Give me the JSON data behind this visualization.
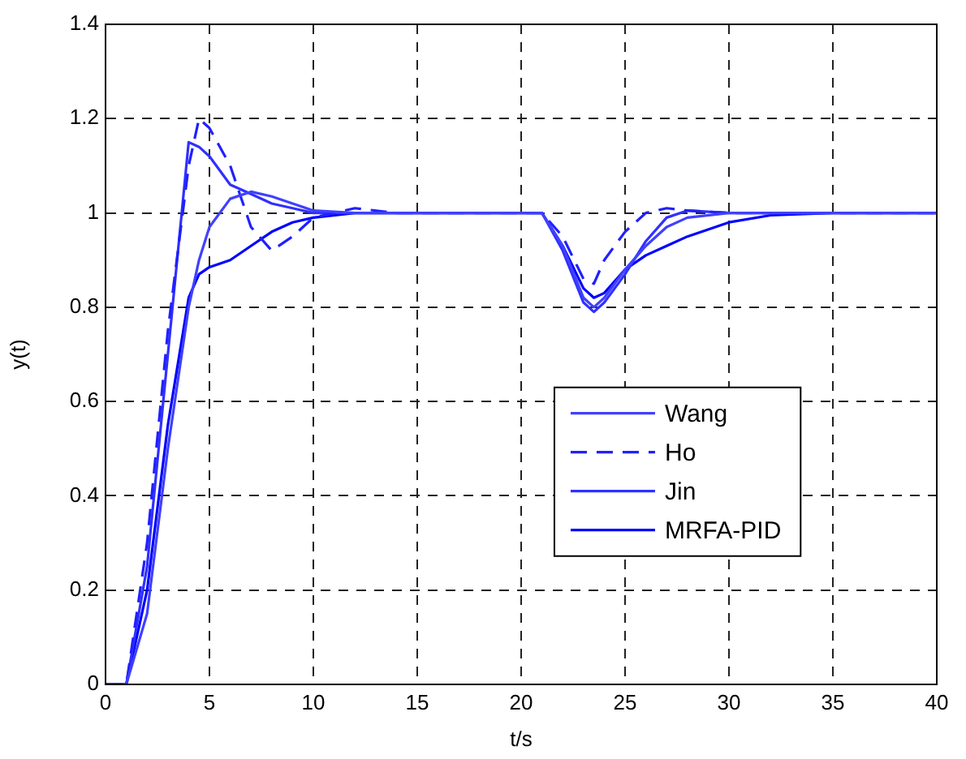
{
  "chart_data": {
    "type": "line",
    "xlabel": "t/s",
    "ylabel": "y(t)",
    "xlim": [
      0,
      40
    ],
    "xticks": [
      0,
      5,
      10,
      15,
      20,
      25,
      30,
      35,
      40
    ],
    "ylim": [
      0,
      1.4
    ],
    "yticks": [
      0,
      0.2,
      0.4,
      0.6,
      0.8,
      1,
      1.2,
      1.4
    ],
    "grid": true,
    "legend": "right",
    "marker": "none",
    "x": [
      0,
      1,
      2,
      3,
      4,
      4.5,
      5,
      6,
      7,
      8,
      9,
      10,
      12,
      14,
      21,
      22,
      23,
      23.5,
      24,
      25,
      26,
      27,
      28,
      30,
      32,
      35,
      40
    ],
    "series": [
      {
        "name": "Wang",
        "color": "#4040ff",
        "line_style": "solid",
        "values": [
          0,
          0,
          0.15,
          0.5,
          0.8,
          0.9,
          0.97,
          1.03,
          1.045,
          1.035,
          1.02,
          1.005,
          1,
          1,
          1,
          0.93,
          0.82,
          0.8,
          0.82,
          0.88,
          0.93,
          0.97,
          0.99,
          1,
          1,
          1,
          1
        ]
      },
      {
        "name": "Ho",
        "color": "#2020ff",
        "line_style": "dashed",
        "values": [
          0,
          0,
          0.3,
          0.75,
          1.1,
          1.2,
          1.18,
          1.1,
          0.97,
          0.92,
          0.95,
          0.99,
          1.01,
          1,
          1,
          0.95,
          0.86,
          0.85,
          0.9,
          0.96,
          1,
          1.01,
          1.005,
          1,
          1,
          1,
          1
        ]
      },
      {
        "name": "Jin",
        "color": "#3030ff",
        "line_style": "solid",
        "values": [
          0,
          0,
          0.25,
          0.7,
          1.15,
          1.14,
          1.12,
          1.06,
          1.04,
          1.02,
          1.01,
          1,
          1,
          1,
          1,
          0.92,
          0.81,
          0.79,
          0.81,
          0.87,
          0.94,
          0.99,
          1.005,
          1,
          1,
          1,
          1
        ]
      },
      {
        "name": "MRFA-PID",
        "color": "#0000ff",
        "line_style": "solid",
        "values": [
          0,
          0,
          0.2,
          0.55,
          0.82,
          0.87,
          0.885,
          0.9,
          0.93,
          0.96,
          0.98,
          0.99,
          1,
          1,
          1,
          0.93,
          0.84,
          0.82,
          0.83,
          0.88,
          0.91,
          0.93,
          0.95,
          0.98,
          0.995,
          1,
          1
        ]
      }
    ]
  }
}
